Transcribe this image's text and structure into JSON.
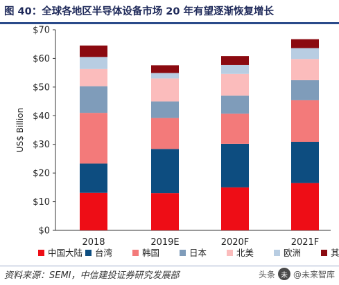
{
  "title": "图 40：全球各地区半导体设备市场 20 年有望逐渐恢复增长",
  "source": "资料来源：SEMI，中信建投证券研究发展部",
  "watermark": {
    "prefix": "头条",
    "name": "@未来智库",
    "logo_char": "未"
  },
  "chart_data": {
    "type": "bar",
    "stacked": true,
    "ylabel": "US$ Billion",
    "ylim": [
      0,
      70
    ],
    "yticks": [
      "$0",
      "$10",
      "$20",
      "$30",
      "$40",
      "$50",
      "$60",
      "$70"
    ],
    "categories": [
      "2018",
      "2019E",
      "2020F",
      "2021F"
    ],
    "series": [
      {
        "name": "中国大陆",
        "color": "#ee0d16",
        "values": [
          13.1,
          13.0,
          15.0,
          16.5
        ]
      },
      {
        "name": "台湾",
        "color": "#0d4d80",
        "values": [
          10.2,
          15.4,
          15.2,
          14.4
        ]
      },
      {
        "name": "韩国",
        "color": "#f37a7a",
        "values": [
          17.7,
          10.8,
          10.5,
          14.5
        ]
      },
      {
        "name": "日本",
        "color": "#7f9cba",
        "values": [
          9.3,
          5.8,
          6.3,
          7.0
        ]
      },
      {
        "name": "北美",
        "color": "#fbbcbc",
        "values": [
          6.0,
          8.0,
          7.6,
          7.4
        ]
      },
      {
        "name": "欧洲",
        "color": "#b8cde2",
        "values": [
          4.2,
          1.9,
          3.1,
          3.8
        ]
      },
      {
        "name": "其他",
        "color": "#8b0a10",
        "values": [
          4.0,
          2.7,
          3.1,
          3.1
        ]
      }
    ],
    "grid": false,
    "legend_position": "bottom"
  }
}
